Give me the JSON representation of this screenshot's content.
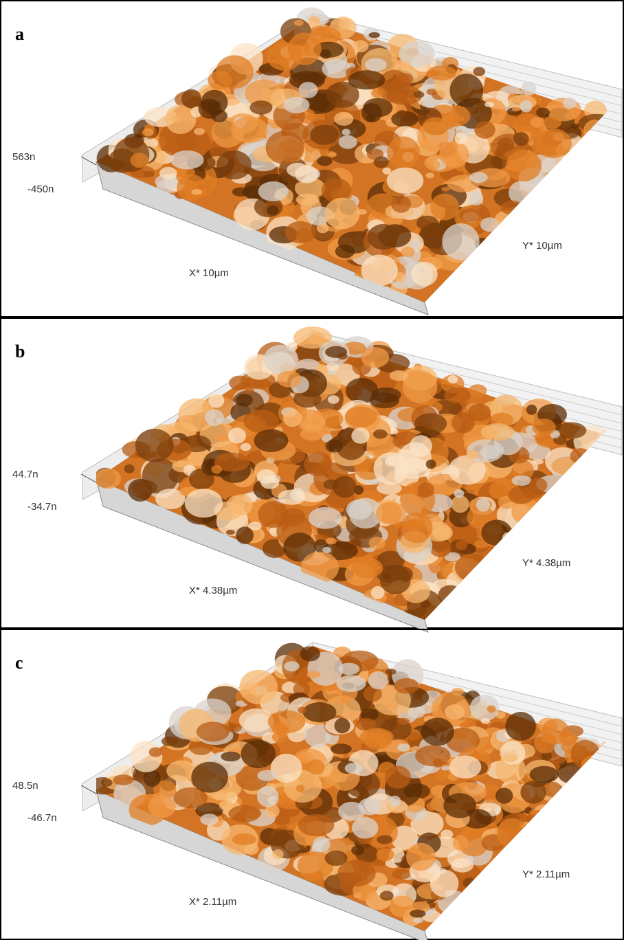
{
  "panels": [
    {
      "label": "a",
      "z_max": "563n",
      "z_min": "-450n",
      "x_label": "X* 10µm",
      "y_label": "Y* 10µm"
    },
    {
      "label": "b",
      "z_max": "44.7n",
      "z_min": "-34.7n",
      "x_label": "X* 4.38µm",
      "y_label": "Y* 4.38µm"
    },
    {
      "label": "c",
      "z_max": "48.5n",
      "z_min": "-46.7n",
      "x_label": "X* 2.11µm",
      "y_label": "Y* 2.11µm"
    }
  ]
}
